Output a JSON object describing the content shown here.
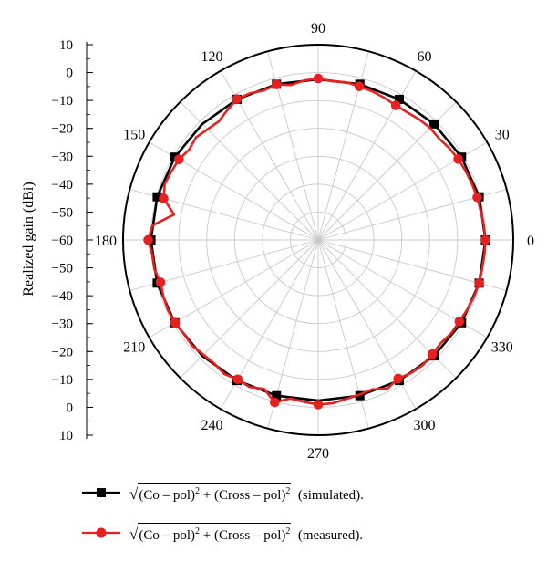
{
  "chart_data": {
    "type": "polar-line",
    "ylabel": "Realized gain (dBi)",
    "radial_ticks_top": [
      "10",
      "0",
      "−10",
      "−20",
      "−30",
      "−40",
      "−50",
      "−60"
    ],
    "radial_ticks_bottom": [
      "−50",
      "−40",
      "−30",
      "−20",
      "−10",
      "0",
      "10"
    ],
    "rlim": [
      -60,
      10
    ],
    "angle_labels": [
      "0",
      "30",
      "60",
      "90",
      "120",
      "150",
      "180",
      "210",
      "240",
      "270",
      "300",
      "330"
    ],
    "angle_values": [
      0,
      30,
      60,
      90,
      120,
      150,
      180,
      210,
      240,
      270,
      300,
      330
    ],
    "grid": true,
    "series": [
      {
        "name": "√(Co − pol)² + (Cross − pol)² (simulated).",
        "color": "#000000",
        "marker": "square",
        "points": [
          [
            0,
            0
          ],
          [
            15,
            -0.2
          ],
          [
            30,
            -0.6
          ],
          [
            45,
            -1.2
          ],
          [
            60,
            -1.8
          ],
          [
            75,
            -2.2
          ],
          [
            90,
            -2.4
          ],
          [
            105,
            -2.2
          ],
          [
            120,
            -1.8
          ],
          [
            135,
            -1.2
          ],
          [
            150,
            -0.6
          ],
          [
            165,
            -0.2
          ],
          [
            180,
            0
          ],
          [
            195,
            -0.2
          ],
          [
            210,
            -0.6
          ],
          [
            225,
            -1.2
          ],
          [
            240,
            -1.8
          ],
          [
            255,
            -2.2
          ],
          [
            270,
            -2.4
          ],
          [
            285,
            -2.2
          ],
          [
            300,
            -1.8
          ],
          [
            315,
            -1.2
          ],
          [
            330,
            -0.6
          ],
          [
            345,
            -0.2
          ]
        ],
        "marker_angles": [
          0,
          15,
          30,
          45,
          60,
          75,
          105,
          120,
          150,
          165,
          180,
          195,
          210,
          240,
          255,
          285,
          300,
          315,
          330,
          345
        ]
      },
      {
        "name": "√(Co − pol)² + (Cross − pol)² (measured).",
        "color": "#e8201f",
        "marker": "circle",
        "points": [
          [
            0,
            0
          ],
          [
            5,
            -0.3
          ],
          [
            10,
            -0.8
          ],
          [
            15,
            -0.9
          ],
          [
            20,
            -1.3
          ],
          [
            25,
            -1.6
          ],
          [
            30,
            -2.0
          ],
          [
            35,
            -2.6
          ],
          [
            40,
            -3.4
          ],
          [
            45,
            -3.2
          ],
          [
            50,
            -3.6
          ],
          [
            55,
            -4.2
          ],
          [
            60,
            -4.3
          ],
          [
            65,
            -3.8
          ],
          [
            70,
            -3.3
          ],
          [
            75,
            -3.0
          ],
          [
            80,
            -2.6
          ],
          [
            85,
            -2.9
          ],
          [
            90,
            -2.1
          ],
          [
            95,
            -2.6
          ],
          [
            100,
            -3.6
          ],
          [
            105,
            -2.3
          ],
          [
            110,
            -3.0
          ],
          [
            115,
            -2.0
          ],
          [
            120,
            -1.7
          ],
          [
            125,
            -3.2
          ],
          [
            130,
            -4.5
          ],
          [
            135,
            -3.9
          ],
          [
            140,
            -2.8
          ],
          [
            145,
            -3.5
          ],
          [
            150,
            -2.3
          ],
          [
            155,
            -1.9
          ],
          [
            160,
            -1.4
          ],
          [
            165,
            -2.6
          ],
          [
            170,
            -7.5
          ],
          [
            175,
            -0.3
          ],
          [
            180,
            1.0
          ],
          [
            185,
            -0.2
          ],
          [
            190,
            -0.3
          ],
          [
            195,
            -1.4
          ],
          [
            200,
            -0.9
          ],
          [
            205,
            -0.5
          ],
          [
            210,
            -0.7
          ],
          [
            215,
            -1.2
          ],
          [
            220,
            -1.0
          ],
          [
            225,
            -1.8
          ],
          [
            230,
            -2.1
          ],
          [
            235,
            -1.3
          ],
          [
            240,
            -2.3
          ],
          [
            245,
            -1.8
          ],
          [
            250,
            -3.2
          ],
          [
            255,
            0.3
          ],
          [
            260,
            -2.3
          ],
          [
            265,
            -1.7
          ],
          [
            270,
            -1.0
          ],
          [
            275,
            -1.2
          ],
          [
            280,
            -2.1
          ],
          [
            285,
            -2.6
          ],
          [
            290,
            -3.0
          ],
          [
            295,
            -1.2
          ],
          [
            300,
            -2.6
          ],
          [
            305,
            -1.8
          ],
          [
            310,
            -1.5
          ],
          [
            315,
            -2.1
          ],
          [
            320,
            -2.5
          ],
          [
            325,
            -1.7
          ],
          [
            330,
            -1.5
          ],
          [
            335,
            -1.0
          ],
          [
            340,
            -0.5
          ],
          [
            345,
            -0.2
          ],
          [
            350,
            -0.3
          ],
          [
            355,
            -0.1
          ]
        ],
        "marker_angles": [
          0,
          15,
          30,
          60,
          75,
          90,
          105,
          120,
          150,
          165,
          180,
          195,
          210,
          240,
          255,
          270,
          300,
          315,
          330,
          345
        ]
      }
    ]
  },
  "legend": [
    {
      "pre": "Co",
      "op1": "–",
      "mid": "pol",
      "plus": "+",
      "cross": "Cross",
      "op2": "–",
      "mid2": "pol",
      "sup": "2",
      "suffix": "(simulated)."
    },
    {
      "pre": "Co",
      "op1": "–",
      "mid": "pol",
      "plus": "+",
      "cross": "Cross",
      "op2": "–",
      "mid2": "pol",
      "sup": "2",
      "suffix": "(measured)."
    }
  ]
}
